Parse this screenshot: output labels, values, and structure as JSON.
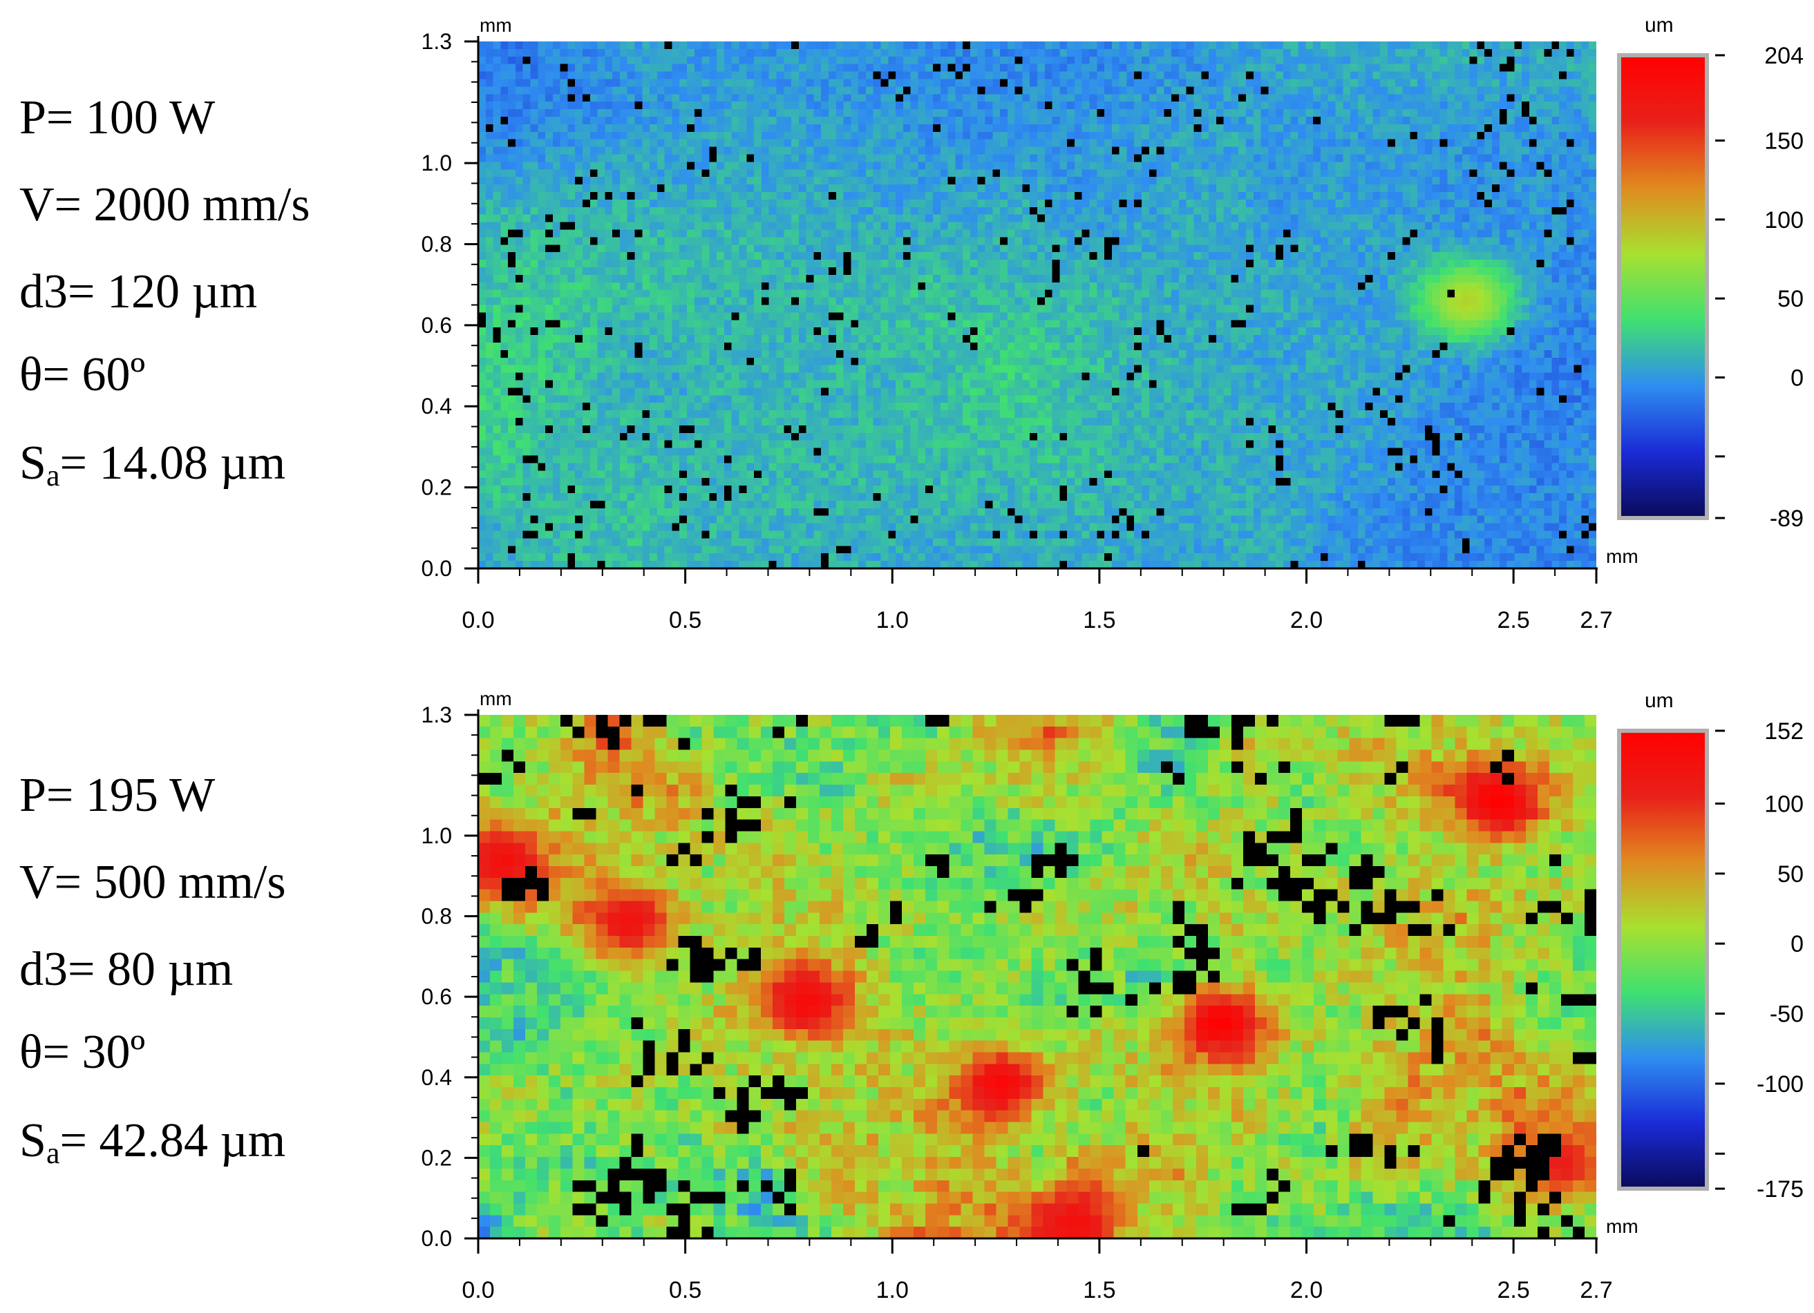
{
  "panels": [
    {
      "params": {
        "P": "P= 100 W",
        "V": "V= 2000 mm/s",
        "d3": "d3= 120 µm",
        "theta": "θ= 60º",
        "Sa_prefix": "S",
        "Sa_sub": "a",
        "Sa_value": "= 14.08 µm"
      }
    },
    {
      "params": {
        "P": "P= 195 W",
        "V": "V= 500 mm/s",
        "d3": "d3= 80 µm",
        "theta": "θ= 30º",
        "Sa_prefix": "S",
        "Sa_sub": "a",
        "Sa_value": "= 42.84 µm"
      }
    }
  ],
  "chart_data": [
    {
      "type": "heatmap",
      "x_unit": "mm",
      "y_unit": "mm",
      "x_range": [
        0.0,
        2.7
      ],
      "y_range": [
        0.0,
        1.3
      ],
      "x_ticks": [
        0.0,
        0.5,
        1.0,
        1.5,
        2.0,
        2.5,
        2.7
      ],
      "x_tick_labels": [
        "0.0",
        "0.5",
        "1.0",
        "1.5",
        "2.0",
        "2.5",
        "2.7"
      ],
      "y_ticks": [
        0.0,
        0.2,
        0.4,
        0.6,
        0.8,
        1.0,
        1.3
      ],
      "y_tick_labels": [
        "0.0",
        "0.2",
        "0.4",
        "0.6",
        "0.8",
        "1.0",
        "1.3"
      ],
      "colorbar": {
        "unit": "um",
        "range": [
          -89,
          204
        ],
        "ticks": [
          204,
          150,
          100,
          50,
          0
        ],
        "tick_labels": [
          "204",
          "150",
          "100",
          "50",
          "0"
        ],
        "unlabeled_ticks": [
          -50
        ],
        "min_label": "-89",
        "colormap": [
          "#0a0a5a",
          "#1a2bd6",
          "#2f8df0",
          "#40e070",
          "#a8e030",
          "#e08a20",
          "#e8201a",
          "#ff0000"
        ]
      },
      "dominant_color_range": [
        -40,
        60
      ],
      "hot_spots": [
        {
          "x": 2.38,
          "y": 0.67,
          "value": 85
        }
      ],
      "void_fraction": 0.02
    },
    {
      "type": "heatmap",
      "x_unit": "mm",
      "y_unit": "mm",
      "x_range": [
        0.0,
        2.7
      ],
      "y_range": [
        0.0,
        1.3
      ],
      "x_ticks": [
        0.0,
        0.5,
        1.0,
        1.5,
        2.0,
        2.5,
        2.7
      ],
      "x_tick_labels": [
        "0.0",
        "0.5",
        "1.0",
        "1.5",
        "2.0",
        "2.5",
        "2.7"
      ],
      "y_ticks": [
        0.0,
        0.2,
        0.4,
        0.6,
        0.8,
        1.0,
        1.3
      ],
      "y_tick_labels": [
        "0.0",
        "0.2",
        "0.4",
        "0.6",
        "0.8",
        "1.0",
        "1.3"
      ],
      "colorbar": {
        "unit": "um",
        "range": [
          -175,
          152
        ],
        "ticks": [
          152,
          100,
          50,
          0,
          -50,
          -100
        ],
        "tick_labels": [
          "152",
          "100",
          "50",
          "0",
          "-50",
          "-100"
        ],
        "unlabeled_ticks": [
          -150
        ],
        "min_label": "-175",
        "colormap": [
          "#0a0a5a",
          "#1a2bd6",
          "#2f8df0",
          "#40e070",
          "#a8e030",
          "#e08a20",
          "#e8201a",
          "#ff0000"
        ]
      },
      "dominant_color_range": [
        -120,
        140
      ],
      "hot_spots": [
        {
          "x": 0.05,
          "y": 0.95,
          "value": 130
        },
        {
          "x": 0.35,
          "y": 0.8,
          "value": 125
        },
        {
          "x": 0.78,
          "y": 0.6,
          "value": 135
        },
        {
          "x": 1.25,
          "y": 0.4,
          "value": 140
        },
        {
          "x": 1.43,
          "y": 0.05,
          "value": 130
        },
        {
          "x": 1.78,
          "y": 0.55,
          "value": 150
        },
        {
          "x": 2.45,
          "y": 1.1,
          "value": 150
        },
        {
          "x": 2.6,
          "y": 0.2,
          "value": 110
        }
      ],
      "void_fraction": 0.12
    }
  ]
}
